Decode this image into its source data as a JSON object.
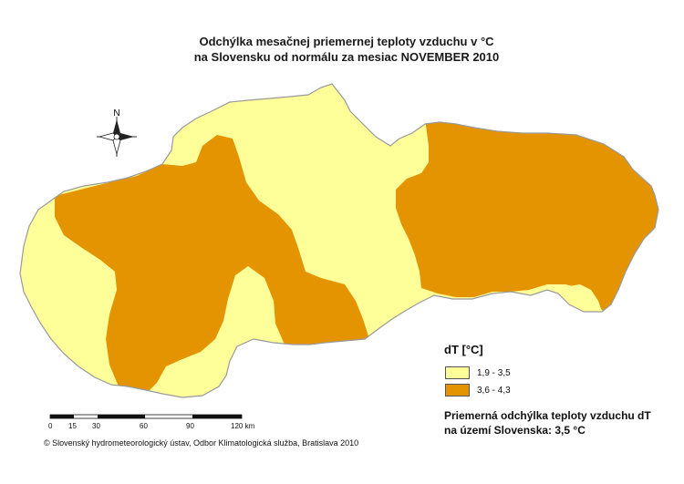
{
  "map": {
    "title_line1": "Odchýlka mesačnej priemernej teploty vzduchu v °C",
    "title_line2": "na Slovensku od normálu za mesiac NOVEMBER 2010",
    "compass_label": "N",
    "legend": {
      "title": "dT [°C]",
      "classes": [
        {
          "label": "1,9 - 3,5",
          "color": "#ffff99"
        },
        {
          "label": "3,6 - 4,3",
          "color": "#e39400"
        }
      ]
    },
    "note_line1": "Priemerná odchýlka teploty vzduchu dT",
    "note_line2": "na území Slovenska: 3,5 °C",
    "scale": {
      "ticks": [
        "0",
        "15",
        "30",
        "60",
        "90",
        "120 km"
      ]
    },
    "credit": "© Slovenský hydrometeorologický ústav, Odbor Klimatologická služba, Bratislava 2010",
    "colors": {
      "low": "#ffff99",
      "high": "#e39400",
      "outline": "#9a9a9a"
    }
  }
}
